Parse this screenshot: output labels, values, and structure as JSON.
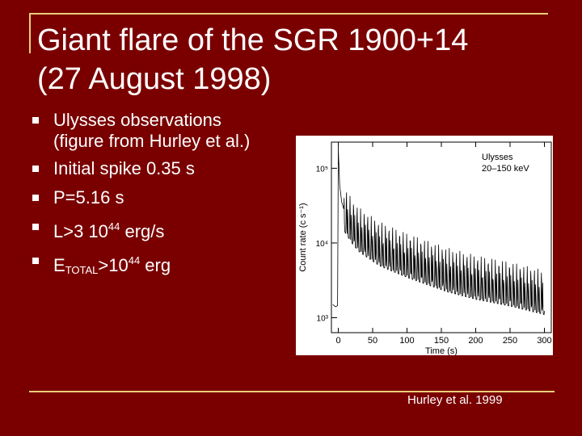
{
  "slide": {
    "title_line1": "Giant flare of the SGR 1900+14",
    "title_line2": "(27 August 1998)",
    "credit": "Hurley et al. 1999",
    "accent_color": "#e9cf7a",
    "background_color": "#7a0000"
  },
  "bullets": {
    "b1_line1": "Ulysses observations",
    "b1_line2": "(figure from  Hurley et al.)",
    "b2": "Initial spike 0.35 s",
    "b3": "P=5.16 s",
    "b4_prefix": "L>3 10",
    "b4_exp": "44",
    "b4_suffix": " erg/s",
    "b5_base": "E",
    "b5_sub": "TOTAL",
    "b5_mid": ">10",
    "b5_exp": "44",
    "b5_suffix": "  erg",
    "marker_icon": "square-bullet-icon"
  },
  "chart_data": {
    "type": "line",
    "legend_line1": "Ulysses",
    "legend_line2": "20–150 keV",
    "ylabel": "Count rate (c s⁻¹)",
    "xlabel": "Time (s)",
    "xlim": [
      -10,
      310
    ],
    "ylim_log10": [
      2.8,
      5.35
    ],
    "x_ticks": [
      "0",
      "50",
      "100",
      "150",
      "200",
      "250",
      "300"
    ],
    "x_tick_values": [
      0,
      50,
      100,
      150,
      200,
      250,
      300
    ],
    "y_ticks": [
      "10³",
      "10⁴",
      "10⁵"
    ],
    "y_tick_values": [
      1000,
      10000,
      100000
    ],
    "pulse_period_s": 5.16,
    "series": [
      {
        "values_note_free": true,
        "x": [
          -8,
          -4,
          -1,
          0,
          0.35,
          2,
          5,
          10,
          20,
          30,
          40,
          60,
          80,
          100,
          130,
          160,
          200,
          250,
          300
        ],
        "y": [
          1500,
          1400,
          1450,
          200000,
          150000,
          60000,
          35000,
          25000,
          18000,
          14000,
          12000,
          9000,
          7500,
          6300,
          5000,
          4000,
          3200,
          2600,
          2000
        ]
      }
    ]
  }
}
